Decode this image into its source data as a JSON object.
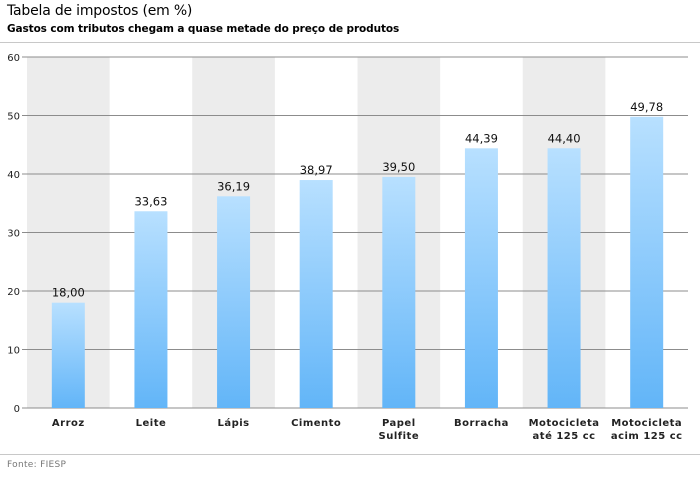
{
  "header": {
    "title": "Tabela de impostos (em %)",
    "subtitle": "Gastos com tributos chegam a quase metade do preço de produtos"
  },
  "footer": {
    "source": "Fonte: FIESP"
  },
  "colors": {
    "bar_top": "#b8e0ff",
    "bar_bottom": "#62b5f8",
    "band": "#ececec",
    "gridline": "#8c8c8c"
  },
  "chart_data": {
    "type": "bar",
    "title": "Tabela de impostos (em %)",
    "subtitle": "Gastos com tributos chegam a quase metade do preço de produtos",
    "categories": [
      [
        "Arroz"
      ],
      [
        "Leite"
      ],
      [
        "Lápis"
      ],
      [
        "Cimento"
      ],
      [
        "Papel",
        "Sulfite"
      ],
      [
        "Borracha"
      ],
      [
        "Motocicleta",
        "até 125 cc"
      ],
      [
        "Motocicleta",
        "acim 125 cc"
      ]
    ],
    "values": [
      18.0,
      33.63,
      36.19,
      38.97,
      39.5,
      44.39,
      44.4,
      49.78
    ],
    "value_labels": [
      "18,00",
      "33,63",
      "36,19",
      "38,97",
      "39,50",
      "44,39",
      "44,40",
      "49,78"
    ],
    "yticks": [
      "0",
      "10",
      "20",
      "30",
      "40",
      "50",
      "60"
    ],
    "ylim": [
      0,
      60
    ],
    "grid": true,
    "alternating_bands": true,
    "legend": "none"
  }
}
